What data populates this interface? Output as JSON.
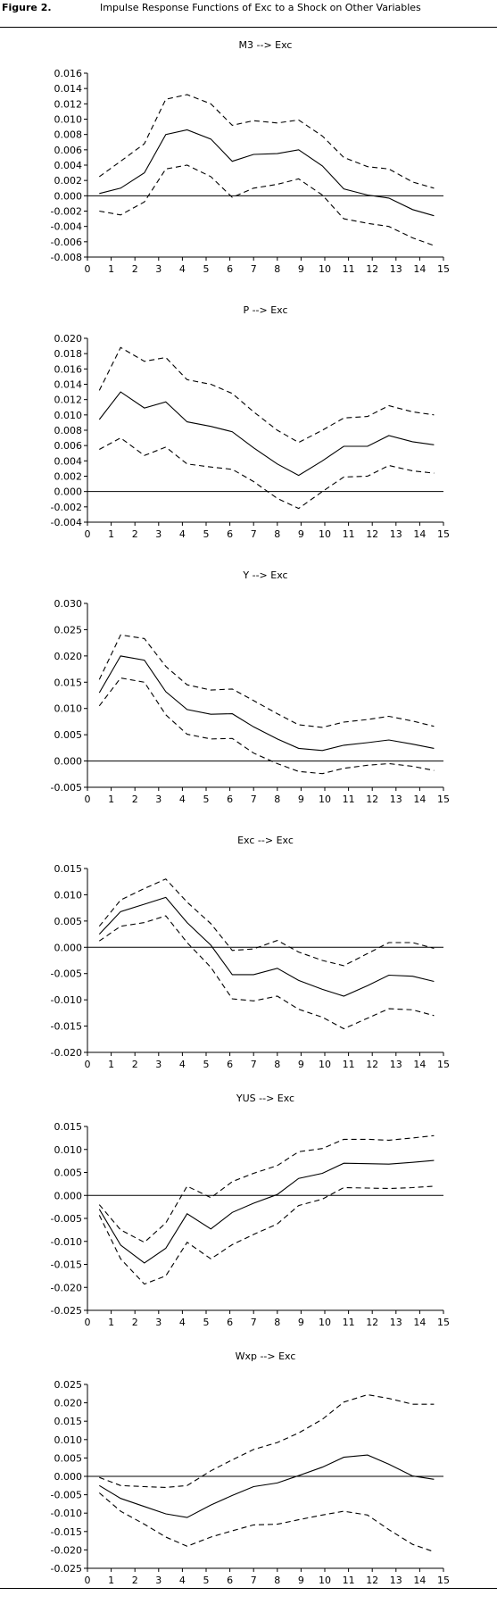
{
  "figure": {
    "label": "Figure 2.",
    "title": "Impulse Response Functions of Exc to a Shock on Other Variables"
  },
  "chart_data": [
    {
      "type": "line",
      "title": "M3 --> Exc",
      "x": [
        0.5,
        1.4,
        2.4,
        3.3,
        4.2,
        5.2,
        6.1,
        7.0,
        8.0,
        8.9,
        9.9,
        10.8,
        11.8,
        12.7,
        13.7,
        14.6
      ],
      "series": [
        {
          "role": "upper",
          "values": [
            0.0025,
            0.0045,
            0.0068,
            0.0126,
            0.0132,
            0.012,
            0.0092,
            0.0098,
            0.0095,
            0.0099,
            0.0078,
            0.005,
            0.0038,
            0.0035,
            0.0018,
            0.001
          ]
        },
        {
          "role": "response",
          "values": [
            0.0003,
            0.001,
            0.003,
            0.008,
            0.0086,
            0.0074,
            0.0045,
            0.0054,
            0.0055,
            0.006,
            0.0039,
            0.0009,
            0.0001,
            -0.0003,
            -0.0018,
            -0.0026
          ]
        },
        {
          "role": "lower",
          "values": [
            -0.002,
            -0.0025,
            -0.0008,
            0.0035,
            0.004,
            0.0025,
            -0.0002,
            0.001,
            0.0015,
            0.0022,
            0.0001,
            -0.003,
            -0.0036,
            -0.004,
            -0.0055,
            -0.0065
          ]
        }
      ],
      "ylim": [
        -0.008,
        0.016
      ],
      "yticks": [
        0.016,
        0.014,
        0.012,
        0.01,
        0.008,
        0.006,
        0.004,
        0.002,
        0.0,
        -0.002,
        -0.004,
        -0.006,
        -0.008
      ],
      "ytick_labels": [
        "0.016",
        "0.014",
        "0.012",
        "0.010",
        "0.008",
        "0.006",
        "0.004",
        "0.002",
        "0.000",
        "-0.002",
        "-0.004",
        "-0.006",
        "-0.008"
      ],
      "xlim": [
        0,
        15
      ],
      "xtick_labels": [
        "0",
        "1",
        "2",
        "3",
        "4",
        "5",
        "6",
        "7",
        "8",
        "9",
        "10",
        "11",
        "12",
        "13",
        "14",
        "15"
      ]
    },
    {
      "type": "line",
      "title": "P --> Exc",
      "x": [
        0.5,
        1.4,
        2.4,
        3.3,
        4.2,
        5.2,
        6.1,
        7.0,
        8.0,
        8.9,
        9.9,
        10.8,
        11.8,
        12.7,
        13.7,
        14.6
      ],
      "series": [
        {
          "role": "upper",
          "values": [
            0.0132,
            0.0188,
            0.017,
            0.0175,
            0.0146,
            0.014,
            0.0128,
            0.0104,
            0.008,
            0.0064,
            0.008,
            0.0096,
            0.0098,
            0.0112,
            0.0104,
            0.01
          ]
        },
        {
          "role": "response",
          "values": [
            0.0094,
            0.013,
            0.0109,
            0.0117,
            0.0091,
            0.0085,
            0.0078,
            0.0057,
            0.0036,
            0.0021,
            0.004,
            0.0059,
            0.0059,
            0.0073,
            0.0065,
            0.0061
          ]
        },
        {
          "role": "lower",
          "values": [
            0.0055,
            0.007,
            0.0047,
            0.0058,
            0.0036,
            0.0032,
            0.0029,
            0.0013,
            -0.0009,
            -0.0022,
            0.0,
            0.0019,
            0.002,
            0.0034,
            0.0027,
            0.0024
          ]
        }
      ],
      "ylim": [
        -0.004,
        0.02
      ],
      "yticks": [
        0.02,
        0.018,
        0.016,
        0.014,
        0.012,
        0.01,
        0.008,
        0.006,
        0.004,
        0.002,
        0.0,
        -0.002,
        -0.004
      ],
      "ytick_labels": [
        "0.020",
        "0.018",
        "0.016",
        "0.014",
        "0.012",
        "0.010",
        "0.008",
        "0.006",
        "0.004",
        "0.002",
        "0.000",
        "-0.002",
        "-0.004"
      ],
      "xlim": [
        0,
        15
      ],
      "xtick_labels": [
        "0",
        "1",
        "2",
        "3",
        "4",
        "5",
        "6",
        "7",
        "8",
        "9",
        "10",
        "11",
        "12",
        "13",
        "14",
        "15"
      ]
    },
    {
      "type": "line",
      "title": "Y --> Exc",
      "x": [
        0.5,
        1.4,
        2.4,
        3.3,
        4.2,
        5.2,
        6.1,
        7.0,
        8.0,
        8.9,
        9.9,
        10.8,
        11.8,
        12.7,
        13.7,
        14.6
      ],
      "series": [
        {
          "role": "upper",
          "values": [
            0.0155,
            0.024,
            0.0233,
            0.018,
            0.0145,
            0.0135,
            0.0137,
            0.0115,
            0.009,
            0.0069,
            0.0064,
            0.0074,
            0.0079,
            0.0085,
            0.0076,
            0.0066
          ]
        },
        {
          "role": "response",
          "values": [
            0.013,
            0.02,
            0.0192,
            0.0132,
            0.0098,
            0.0089,
            0.009,
            0.0065,
            0.0042,
            0.0024,
            0.002,
            0.003,
            0.0035,
            0.004,
            0.0032,
            0.0024
          ]
        },
        {
          "role": "lower",
          "values": [
            0.0105,
            0.0158,
            0.015,
            0.0088,
            0.0051,
            0.0042,
            0.0043,
            0.0015,
            -0.0005,
            -0.002,
            -0.0024,
            -0.0014,
            -0.0008,
            -0.0005,
            -0.001,
            -0.0018
          ]
        }
      ],
      "ylim": [
        -0.005,
        0.03
      ],
      "yticks": [
        0.03,
        0.025,
        0.02,
        0.015,
        0.01,
        0.005,
        0.0,
        -0.005
      ],
      "ytick_labels": [
        "0.030",
        "0.025",
        "0.020",
        "0.015",
        "0.010",
        "0.005",
        "0.000",
        "-0.005"
      ],
      "xlim": [
        0,
        15
      ],
      "xtick_labels": [
        "0",
        "1",
        "2",
        "3",
        "4",
        "5",
        "6",
        "7",
        "8",
        "9",
        "10",
        "11",
        "12",
        "13",
        "14",
        "15"
      ]
    },
    {
      "type": "line",
      "title": "Exc --> Exc",
      "x": [
        0.5,
        1.4,
        2.4,
        3.3,
        4.2,
        5.2,
        6.1,
        7.0,
        8.0,
        8.9,
        9.9,
        10.8,
        11.8,
        12.7,
        13.7,
        14.6
      ],
      "series": [
        {
          "role": "upper",
          "values": [
            0.004,
            0.009,
            0.0112,
            0.013,
            0.0086,
            0.0045,
            -0.0006,
            -0.0003,
            0.0013,
            -0.0009,
            -0.0025,
            -0.0035,
            -0.0012,
            0.0009,
            0.0009,
            -0.0002
          ]
        },
        {
          "role": "response",
          "values": [
            0.0025,
            0.0068,
            0.0082,
            0.0095,
            0.0047,
            0.0004,
            -0.0052,
            -0.0052,
            -0.004,
            -0.0063,
            -0.008,
            -0.0093,
            -0.0073,
            -0.0053,
            -0.0055,
            -0.0065
          ]
        },
        {
          "role": "lower",
          "values": [
            0.0012,
            0.004,
            0.0047,
            0.006,
            0.0009,
            -0.0038,
            -0.0098,
            -0.0102,
            -0.0093,
            -0.0118,
            -0.0133,
            -0.0155,
            -0.0135,
            -0.0117,
            -0.0119,
            -0.013
          ]
        }
      ],
      "ylim": [
        -0.02,
        0.015
      ],
      "yticks": [
        0.015,
        0.01,
        0.005,
        0.0,
        -0.005,
        -0.01,
        -0.015,
        -0.02
      ],
      "ytick_labels": [
        "0.015",
        "0.010",
        "0.005",
        "0.000",
        "-0.005",
        "-0.010",
        "-0.015",
        "-0.020"
      ],
      "xlim": [
        0,
        15
      ],
      "xtick_labels": [
        "0",
        "1",
        "2",
        "3",
        "4",
        "5",
        "6",
        "7",
        "8",
        "9",
        "10",
        "11",
        "12",
        "13",
        "14",
        "15"
      ]
    },
    {
      "type": "line",
      "title": "YUS --> Exc",
      "x": [
        0.5,
        1.4,
        2.4,
        3.3,
        4.2,
        5.2,
        6.1,
        7.0,
        8.0,
        8.9,
        9.9,
        10.8,
        11.8,
        12.7,
        13.7,
        14.6
      ],
      "series": [
        {
          "role": "upper",
          "values": [
            -0.002,
            -0.0075,
            -0.0102,
            -0.006,
            0.002,
            -0.0005,
            0.003,
            0.0048,
            0.0065,
            0.0095,
            0.0102,
            0.0122,
            0.0122,
            0.012,
            0.0125,
            0.013
          ]
        },
        {
          "role": "response",
          "values": [
            -0.003,
            -0.0108,
            -0.0147,
            -0.0115,
            -0.004,
            -0.0073,
            -0.0037,
            -0.0017,
            0.0002,
            0.0037,
            0.0048,
            0.007,
            0.0069,
            0.0068,
            0.0072,
            0.0076
          ]
        },
        {
          "role": "lower",
          "values": [
            -0.0043,
            -0.0138,
            -0.0193,
            -0.0175,
            -0.0102,
            -0.0138,
            -0.0107,
            -0.0085,
            -0.0062,
            -0.0022,
            -0.0008,
            0.0017,
            0.0016,
            0.0015,
            0.0017,
            0.002
          ]
        }
      ],
      "ylim": [
        -0.025,
        0.015
      ],
      "yticks": [
        0.015,
        0.01,
        0.005,
        0.0,
        -0.005,
        -0.01,
        -0.015,
        -0.02,
        -0.025
      ],
      "ytick_labels": [
        "0.015",
        "0.010",
        "0.005",
        "0.000",
        "-0.005",
        "-0.010",
        "-0.015",
        "-0.020",
        "-0.025"
      ],
      "xlim": [
        0,
        15
      ],
      "xtick_labels": [
        "0",
        "1",
        "2",
        "3",
        "4",
        "5",
        "6",
        "7",
        "8",
        "9",
        "10",
        "11",
        "12",
        "13",
        "14",
        "15"
      ]
    },
    {
      "type": "line",
      "title": "Wxp --> Exc",
      "x": [
        0.5,
        1.4,
        2.4,
        3.3,
        4.2,
        5.2,
        6.1,
        7.0,
        8.0,
        8.9,
        9.9,
        10.8,
        11.8,
        12.7,
        13.7,
        14.6
      ],
      "series": [
        {
          "role": "upper",
          "values": [
            -0.0003,
            -0.0025,
            -0.0028,
            -0.003,
            -0.0025,
            0.0015,
            0.0045,
            0.0073,
            0.0092,
            0.0118,
            0.0155,
            0.0202,
            0.0222,
            0.0212,
            0.0196,
            0.0196
          ]
        },
        {
          "role": "response",
          "values": [
            -0.0025,
            -0.006,
            -0.0082,
            -0.0102,
            -0.0112,
            -0.0078,
            -0.0052,
            -0.0028,
            -0.0018,
            0.0002,
            0.0025,
            0.0052,
            0.0058,
            0.0033,
            0.0001,
            -0.0008
          ]
        },
        {
          "role": "lower",
          "values": [
            -0.0045,
            -0.0095,
            -0.013,
            -0.0165,
            -0.019,
            -0.0165,
            -0.0148,
            -0.0132,
            -0.013,
            -0.0118,
            -0.0105,
            -0.0095,
            -0.0105,
            -0.0145,
            -0.0185,
            -0.0205
          ]
        }
      ],
      "ylim": [
        -0.025,
        0.025
      ],
      "yticks": [
        0.025,
        0.02,
        0.015,
        0.01,
        0.005,
        0.0,
        -0.005,
        -0.01,
        -0.015,
        -0.02,
        -0.025
      ],
      "ytick_labels": [
        "0.025",
        "0.020",
        "0.015",
        "0.010",
        "0.005",
        "0.000",
        "-0.005",
        "-0.010",
        "-0.015",
        "-0.020",
        "-0.025"
      ],
      "xlim": [
        0,
        15
      ],
      "xtick_labels": [
        "0",
        "1",
        "2",
        "3",
        "4",
        "5",
        "6",
        "7",
        "8",
        "9",
        "10",
        "11",
        "12",
        "13",
        "14",
        "15"
      ]
    }
  ]
}
